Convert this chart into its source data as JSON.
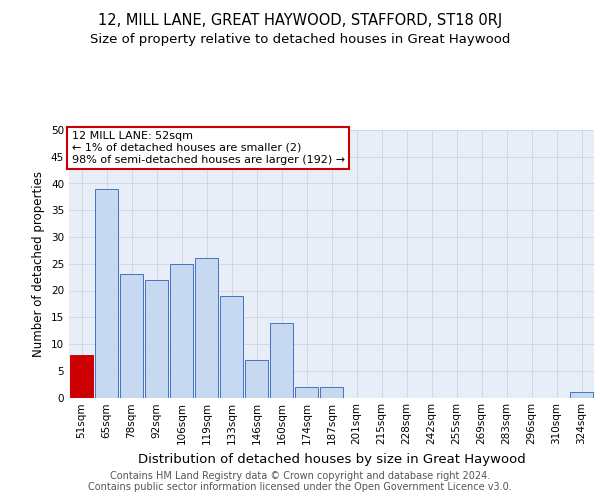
{
  "title": "12, MILL LANE, GREAT HAYWOOD, STAFFORD, ST18 0RJ",
  "subtitle": "Size of property relative to detached houses in Great Haywood",
  "xlabel": "Distribution of detached houses by size in Great Haywood",
  "ylabel": "Number of detached properties",
  "categories": [
    "51sqm",
    "65sqm",
    "78sqm",
    "92sqm",
    "106sqm",
    "119sqm",
    "133sqm",
    "146sqm",
    "160sqm",
    "174sqm",
    "187sqm",
    "201sqm",
    "215sqm",
    "228sqm",
    "242sqm",
    "255sqm",
    "269sqm",
    "283sqm",
    "296sqm",
    "310sqm",
    "324sqm"
  ],
  "values": [
    8,
    39,
    23,
    22,
    25,
    26,
    19,
    7,
    14,
    2,
    2,
    0,
    0,
    0,
    0,
    0,
    0,
    0,
    0,
    0,
    1
  ],
  "bar_color": "#c6d9f0",
  "bar_edge_color": "#4472c4",
  "highlight_bar_index": 0,
  "highlight_bar_color": "#cc0000",
  "annotation_box_text": "12 MILL LANE: 52sqm\n← 1% of detached houses are smaller (2)\n98% of semi-detached houses are larger (192) →",
  "annotation_box_edge_color": "#cc0000",
  "ylim": [
    0,
    50
  ],
  "yticks": [
    0,
    5,
    10,
    15,
    20,
    25,
    30,
    35,
    40,
    45,
    50
  ],
  "grid_color": "#d0d8e8",
  "background_color": "#e8eef8",
  "footer": "Contains HM Land Registry data © Crown copyright and database right 2024.\nContains public sector information licensed under the Open Government Licence v3.0.",
  "title_fontsize": 10.5,
  "subtitle_fontsize": 9.5,
  "xlabel_fontsize": 9.5,
  "ylabel_fontsize": 8.5,
  "tick_fontsize": 7.5,
  "footer_fontsize": 7
}
